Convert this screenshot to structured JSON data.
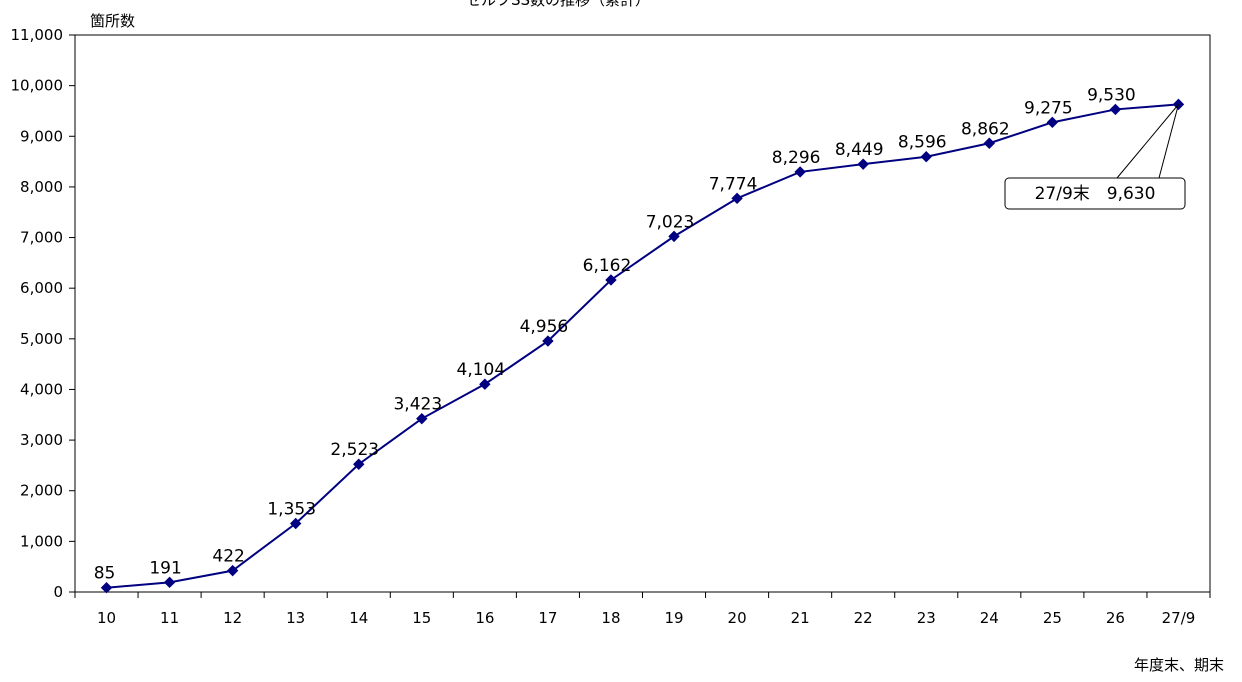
{
  "chart_data": {
    "type": "line",
    "title": "セルフSS数の推移（累計）",
    "ylabel": "箇所数",
    "xlabel": "年度末、期末",
    "categories": [
      "10",
      "11",
      "12",
      "13",
      "14",
      "15",
      "16",
      "17",
      "18",
      "19",
      "20",
      "21",
      "22",
      "23",
      "24",
      "25",
      "26",
      "27/9"
    ],
    "series": [
      {
        "values": [
          85,
          191,
          422,
          1353,
          2523,
          3423,
          4104,
          4956,
          6162,
          7023,
          7774,
          8296,
          8449,
          8596,
          8862,
          9275,
          9530,
          9630
        ],
        "data_labels": [
          "85",
          "191",
          "422",
          "1,353",
          "2,523",
          "3,423",
          "4,104",
          "4,956",
          "6,162",
          "7,023",
          "7,774",
          "8,296",
          "8,449",
          "8,596",
          "8,862",
          "9,275",
          "9,530",
          ""
        ],
        "color": "#000080"
      }
    ],
    "ylim": [
      0,
      11000
    ],
    "ytick_labels": [
      "0",
      "1,000",
      "2,000",
      "3,000",
      "4,000",
      "5,000",
      "6,000",
      "7,000",
      "8,000",
      "9,000",
      "10,000",
      "11,000"
    ],
    "grid": false,
    "annotation": {
      "text": "27/9末　9,630",
      "target_category": "27/9"
    }
  }
}
